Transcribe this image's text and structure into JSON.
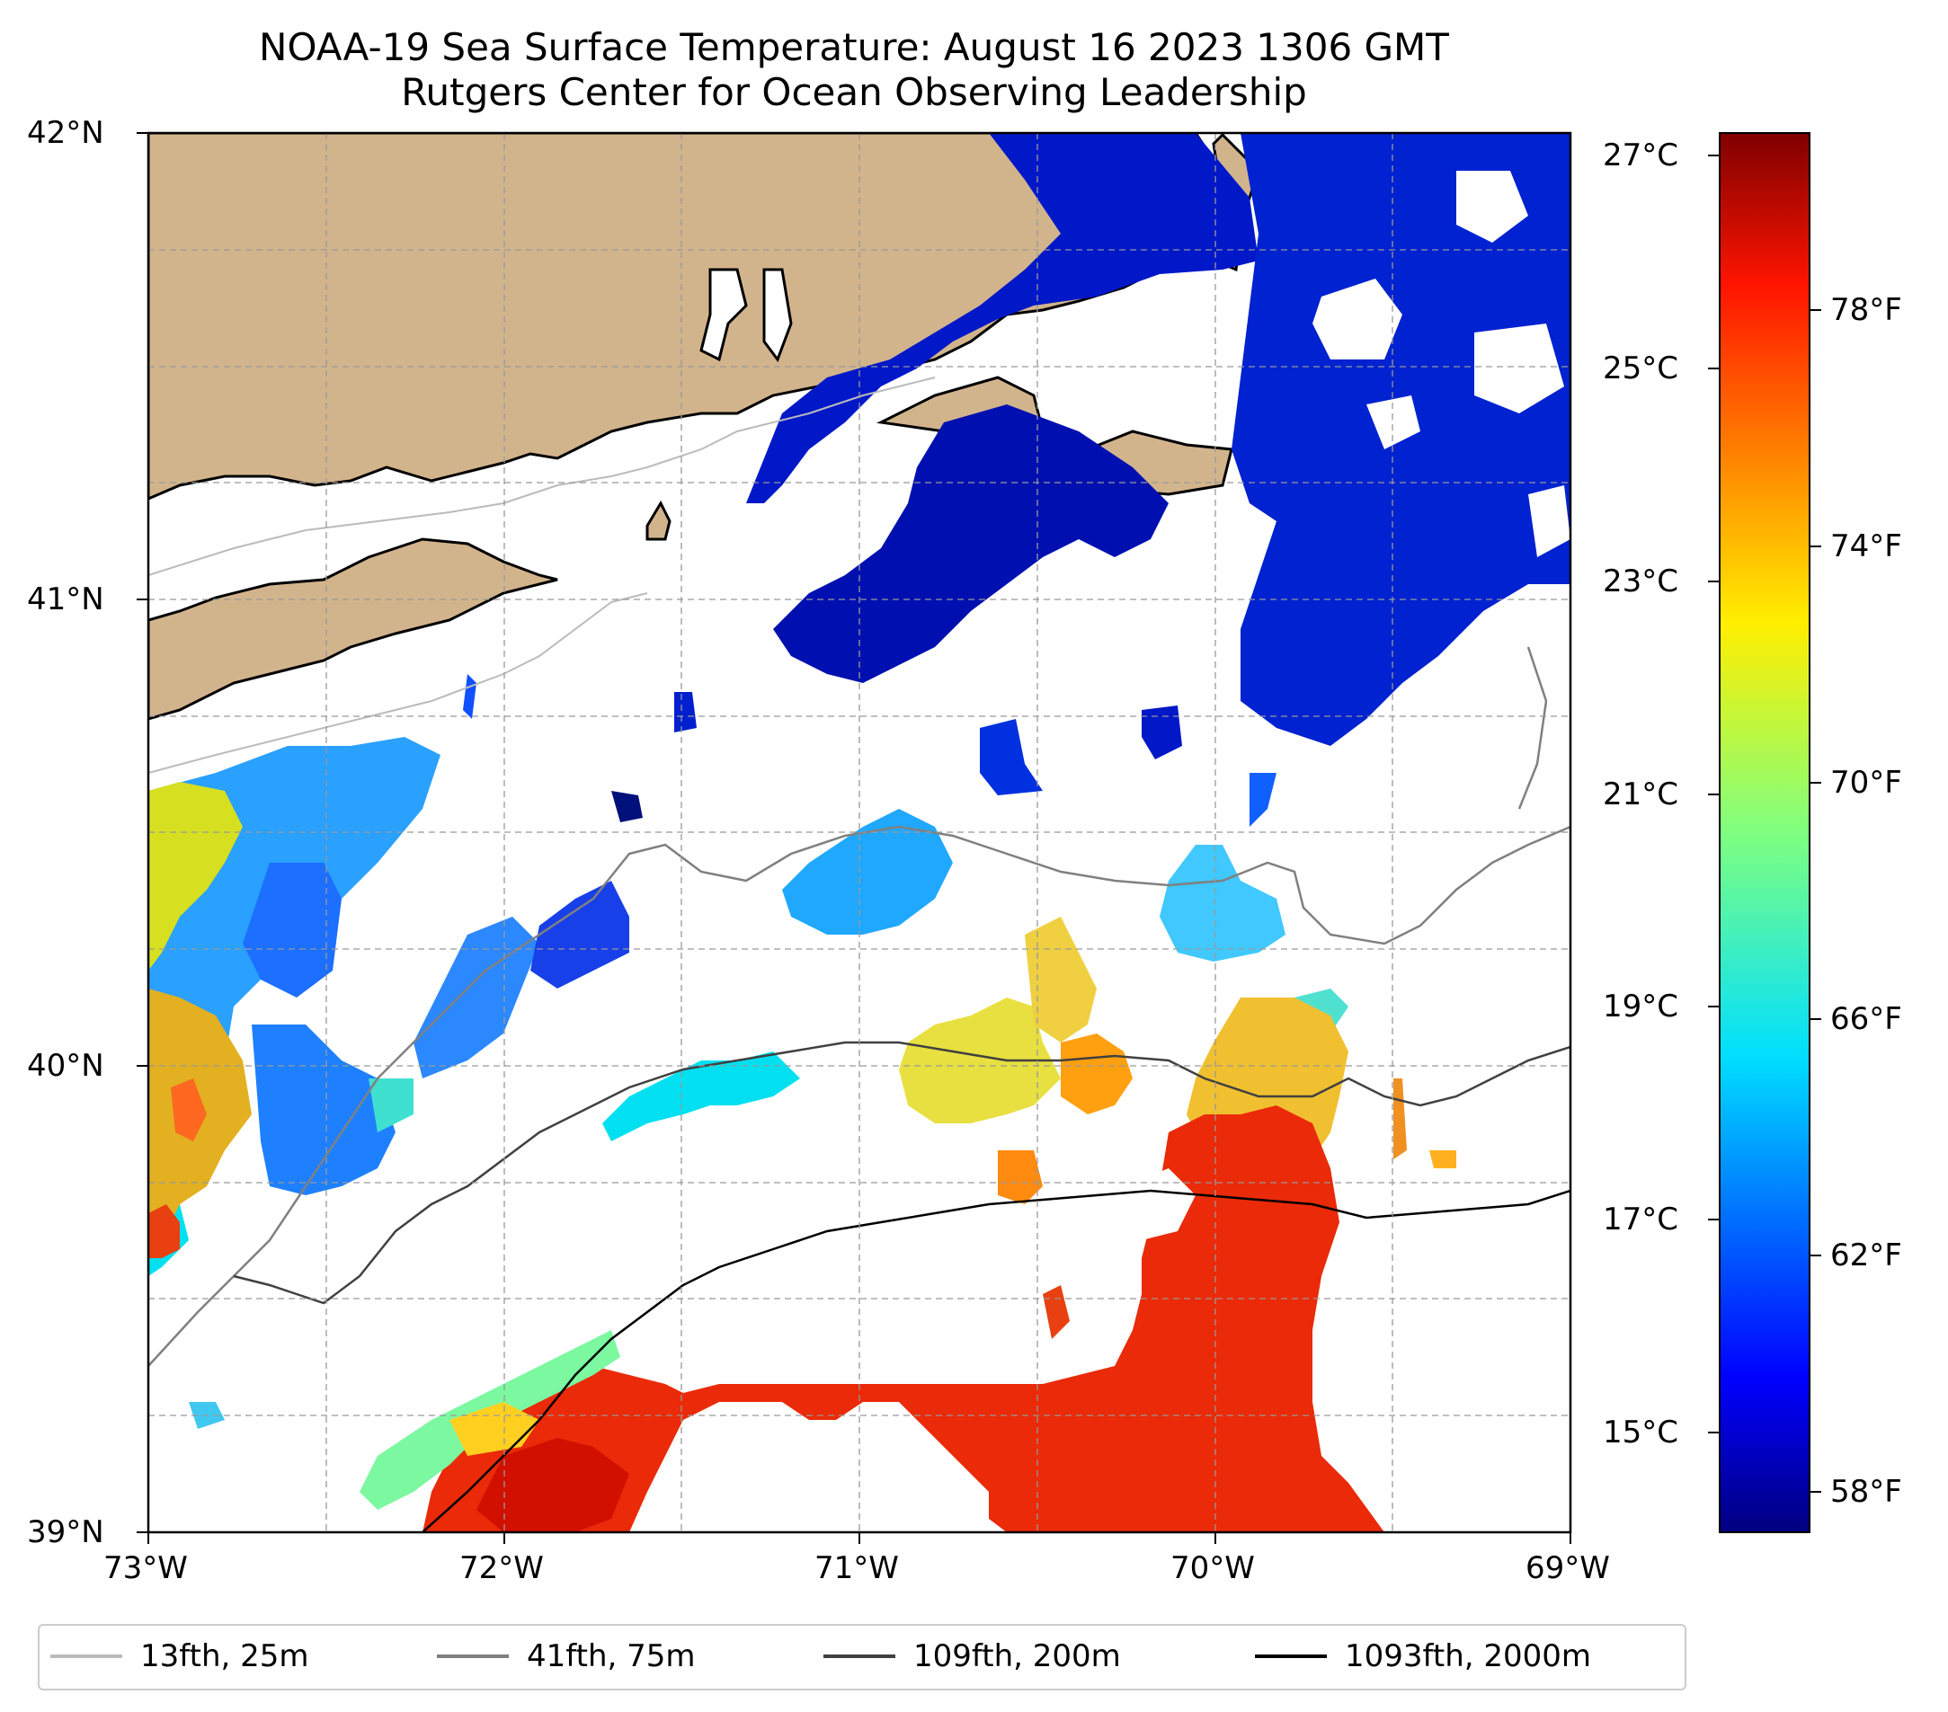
{
  "title": {
    "line1": "NOAA-19 Sea Surface Temperature: August 16 2023 1306 GMT",
    "line2": "Rutgers Center for Ocean Observing Leadership"
  },
  "map": {
    "extent": {
      "lon": [
        -73,
        -69
      ],
      "lat": [
        39,
        42
      ]
    },
    "land_color": "#d2b48c",
    "lat_labels": [
      "42°N",
      "41°N",
      "40°N",
      "39°N"
    ],
    "lon_labels": [
      "73°W",
      "72°W",
      "71°W",
      "70°W",
      "69°W"
    ],
    "gridlines": "dashed"
  },
  "colorbar": {
    "colormap": "jet",
    "celsius_labels": [
      "27°C",
      "25°C",
      "23°C",
      "21°C",
      "19°C",
      "17°C",
      "15°C"
    ],
    "fahrenheit_labels": [
      "78°F",
      "74°F",
      "70°F",
      "66°F",
      "62°F",
      "58°F"
    ]
  },
  "legend": [
    {
      "label": "13fth, 25m",
      "color": "#bbbbbb"
    },
    {
      "label": "41fth, 75m",
      "color": "#808080"
    },
    {
      "label": "109fth, 200m",
      "color": "#404040"
    },
    {
      "label": "1093fth, 2000m",
      "color": "#000000"
    }
  ]
}
